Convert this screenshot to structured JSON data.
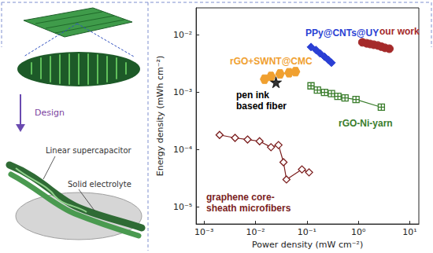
{
  "chart_data": {
    "type": "line",
    "xlabel": "Power density (mW cm⁻²)",
    "ylabel": "Energy density (mWh cm⁻²)",
    "log": true,
    "grid": false,
    "xlim": [
      0.0007,
      15
    ],
    "ylim": [
      5e-06,
      0.03
    ],
    "xticks": [
      {
        "value": 0.001,
        "label": "10⁻³"
      },
      {
        "value": 0.01,
        "label": "10⁻²"
      },
      {
        "value": 0.1,
        "label": "10⁻¹"
      },
      {
        "value": 1,
        "label": "10⁰"
      },
      {
        "value": 10,
        "label": "10¹"
      }
    ],
    "yticks": [
      {
        "value": 1e-05,
        "label": "10⁻⁵"
      },
      {
        "value": 0.0001,
        "label": "10⁻⁴"
      },
      {
        "value": 0.001,
        "label": "10⁻³"
      },
      {
        "value": 0.01,
        "label": "10⁻²"
      }
    ],
    "series": [
      {
        "name": "our work",
        "color": "#a52a2a",
        "marker": "circle",
        "line_style": "solid",
        "x": [
          1.2,
          1.45,
          1.7,
          2.0,
          2.4,
          2.8,
          3.3,
          4.0
        ],
        "values": [
          0.0075,
          0.0072,
          0.007,
          0.0068,
          0.0066,
          0.0063,
          0.006,
          0.0058
        ]
      },
      {
        "name": "PPy@CNTs@UY",
        "color": "#2a3fd4",
        "marker": "diamond",
        "line_style": "solid",
        "x": [
          0.12,
          0.15,
          0.18,
          0.22,
          0.26,
          0.3
        ],
        "values": [
          0.0062,
          0.0055,
          0.0048,
          0.0042,
          0.0037,
          0.0033
        ]
      },
      {
        "name": "rGO+SWNT@CMC",
        "color": "#f0a030",
        "marker": "hexagon",
        "line_style": "solid",
        "x": [
          0.015,
          0.02,
          0.03,
          0.045,
          0.06
        ],
        "values": [
          0.0017,
          0.0019,
          0.0021,
          0.0022,
          0.0023
        ]
      },
      {
        "name": "pen ink based fiber",
        "color": "#000000",
        "marker": "star",
        "type": "scatter",
        "x": [
          0.025
        ],
        "values": [
          0.0015
        ]
      },
      {
        "name": "rGO-Ni-yarn",
        "color": "#3a7d2c",
        "marker": "square_cross",
        "line_style": "solid",
        "x": [
          0.12,
          0.16,
          0.22,
          0.3,
          0.4,
          0.55,
          0.9,
          2.8
        ],
        "values": [
          0.0013,
          0.0011,
          0.001,
          0.00095,
          0.00085,
          0.0008,
          0.00075,
          0.00055
        ]
      },
      {
        "name": "graphene core-sheath microfibers",
        "color": "#7b1e1e",
        "marker": "diamond_open",
        "line_style": "solid",
        "x": [
          0.002,
          0.004,
          0.007,
          0.012,
          0.02,
          0.028,
          0.035,
          0.04,
          0.08,
          0.11
        ],
        "values": [
          0.00018,
          0.00016,
          0.00015,
          0.00014,
          0.00011,
          0.00012,
          6e-05,
          3e-05,
          4.5e-05,
          4e-05
        ]
      }
    ]
  },
  "illustration": {
    "step": "Design",
    "labels": [
      "Linear supercapacitor",
      "Solid electrolyte"
    ]
  }
}
